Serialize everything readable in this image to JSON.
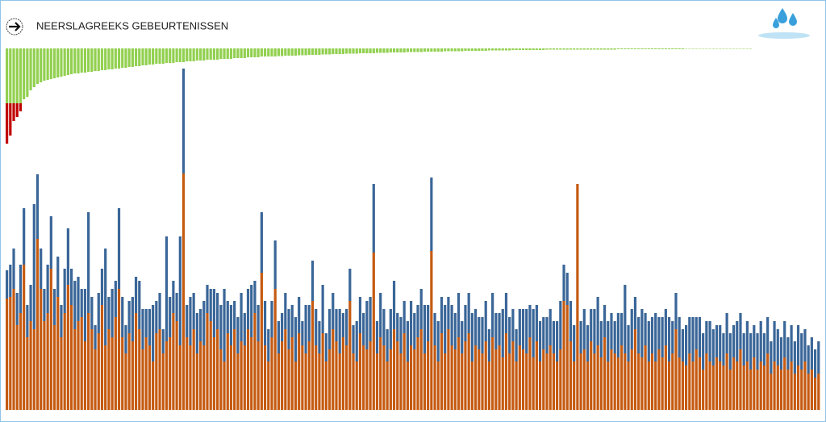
{
  "chart_data": [
    {
      "type": "bar",
      "title": "NEERSLAGREEKS GEBEURTENISSEN",
      "direction": "down",
      "ylim": [
        0,
        118
      ],
      "series": [
        {
          "color": "#92d050",
          "values": [
            68,
            68,
            68,
            68,
            68,
            63,
            60,
            52,
            48,
            44,
            42,
            40,
            39,
            38,
            37,
            36,
            35,
            34,
            33,
            32,
            31,
            31,
            30,
            30,
            29,
            29,
            28,
            28,
            27,
            27,
            26,
            26,
            25,
            25,
            24,
            24,
            23,
            23,
            22,
            22,
            21,
            21,
            20,
            20,
            19,
            19,
            19,
            18,
            18,
            18,
            17,
            17,
            17,
            16,
            16,
            16,
            15,
            15,
            15,
            14,
            14,
            14,
            14,
            13,
            13,
            13,
            13,
            12,
            12,
            12,
            12,
            11,
            11,
            11,
            11,
            10,
            10,
            10,
            10,
            10,
            9.5,
            9.5,
            9,
            9,
            9,
            9,
            8.5,
            8.5,
            8.5,
            8,
            8,
            8,
            8,
            7.5,
            7.5,
            7.5,
            7,
            7,
            7,
            7,
            6.5,
            6.5,
            6.5,
            6.5,
            6,
            6,
            6,
            6,
            6,
            5.5,
            5.5,
            5.5,
            5.5,
            5,
            5,
            5,
            5,
            5,
            4.5,
            4.5,
            4.5,
            4.5,
            4.5,
            4,
            4,
            4,
            4,
            4,
            4,
            3.5,
            3.5,
            3.5,
            3.5,
            3.5,
            3.5,
            3,
            3,
            3,
            3,
            3,
            3,
            3,
            2.5,
            2.5,
            2.5,
            2.5,
            2.5,
            2.5,
            2.5,
            2,
            2,
            2,
            2,
            2,
            2,
            2,
            2,
            2,
            2,
            1.5,
            1.5,
            1.5,
            1.5,
            1.5,
            1.5,
            1.5,
            1.5,
            1.5,
            1.5,
            1.5,
            1.5,
            1.5,
            1.5,
            1.5,
            1.5,
            1.5,
            1.5,
            1.5,
            1.5,
            1.5,
            1,
            1,
            1,
            1,
            1,
            1,
            1,
            1,
            1,
            1,
            1,
            1,
            1,
            1,
            1,
            1,
            1,
            1,
            1,
            1,
            0.5,
            0.5,
            0.5,
            0.5,
            0.5,
            0.5,
            0.5,
            0.5,
            0.5,
            0.5,
            0.5,
            0.5,
            0.5,
            0.5,
            0.5,
            0.5,
            0.5,
            0.5,
            0.5,
            0.5
          ]
        },
        {
          "color": "#c00000",
          "values": [
            50,
            40,
            22,
            17,
            10
          ]
        }
      ]
    },
    {
      "type": "stacked_bar",
      "ylim": [
        0,
        430
      ],
      "series": [
        {
          "color": "#c55a11",
          "values": [
            138,
            140,
            150,
            105,
            120,
            180,
            90,
            110,
            100,
            212,
            150,
            110,
            120,
            175,
            105,
            140,
            90,
            120,
            155,
            130,
            100,
            110,
            115,
            85,
            120,
            100,
            75,
            95,
            130,
            80,
            100,
            90,
            115,
            150,
            90,
            70,
            95,
            85,
            120,
            100,
            75,
            90,
            80,
            60,
            95,
            100,
            70,
            85,
            90,
            120,
            110,
            80,
            293,
            90,
            80,
            100,
            70,
            85,
            80,
            120,
            110,
            90,
            100,
            75,
            60,
            95,
            80,
            100,
            70,
            85,
            80,
            100,
            90,
            120,
            85,
            170,
            80,
            60,
            90,
            150,
            70,
            85,
            100,
            75,
            90,
            60,
            95,
            80,
            70,
            85,
            135,
            80,
            70,
            95,
            60,
            75,
            100,
            85,
            70,
            90,
            80,
            135,
            70,
            60,
            95,
            80,
            75,
            85,
            195,
            70,
            90,
            80,
            60,
            75,
            100,
            85,
            70,
            95,
            60,
            80,
            75,
            90,
            100,
            70,
            85,
            197,
            80,
            60,
            95,
            70,
            100,
            80,
            75,
            90,
            70,
            85,
            95,
            60,
            80,
            75,
            70,
            85,
            60,
            90,
            75,
            80,
            65,
            95,
            70,
            85,
            60,
            80,
            75,
            70,
            90,
            65,
            85,
            60,
            75,
            70,
            80,
            70,
            60,
            75,
            135,
            130,
            85,
            60,
            280,
            70,
            75,
            60,
            85,
            70,
            80,
            65,
            90,
            60,
            75,
            70,
            65,
            80,
            70,
            60,
            75,
            100,
            70,
            65,
            80,
            60,
            70,
            60,
            75,
            65,
            80,
            60,
            70,
            100,
            65,
            60,
            55,
            70,
            60,
            75,
            65,
            50,
            70,
            60,
            55,
            65,
            60,
            55,
            70,
            50,
            65,
            60,
            75,
            55,
            60,
            50,
            65,
            50,
            60,
            55,
            70,
            45,
            60,
            55,
            50,
            65,
            50,
            60,
            45,
            55,
            50,
            60,
            45,
            50,
            40,
            45
          ]
        },
        {
          "color": "#3a6698",
          "values": [
            35,
            40,
            50,
            40,
            60,
            70,
            40,
            45,
            155,
            80,
            50,
            40,
            60,
            65,
            45,
            50,
            40,
            55,
            70,
            45,
            60,
            55,
            35,
            65,
            125,
            40,
            30,
            50,
            45,
            120,
            40,
            60,
            45,
            100,
            50,
            35,
            40,
            55,
            45,
            60,
            50,
            35,
            45,
            70,
            40,
            45,
            30,
            130,
            50,
            40,
            35,
            135,
            130,
            40,
            60,
            45,
            50,
            40,
            55,
            35,
            40,
            60,
            45,
            55,
            90,
            40,
            50,
            35,
            45,
            60,
            40,
            50,
            65,
            40,
            45,
            75,
            55,
            40,
            45,
            60,
            40,
            35,
            45,
            50,
            40,
            55,
            45,
            30,
            60,
            45,
            50,
            45,
            40,
            60,
            35,
            50,
            45,
            40,
            55,
            30,
            45,
            40,
            35,
            50,
            45,
            40,
            60,
            55,
            85,
            40,
            55,
            45,
            40,
            50,
            60,
            35,
            45,
            40,
            50,
            55,
            45,
            40,
            50,
            60,
            45,
            91,
            40,
            50,
            45,
            60,
            40,
            50,
            45,
            55,
            40,
            45,
            50,
            60,
            45,
            40,
            45,
            50,
            40,
            55,
            45,
            40,
            60,
            50,
            45,
            40,
            40,
            45,
            50,
            55,
            40,
            60,
            45,
            50,
            40,
            45,
            45,
            40,
            50,
            60,
            45,
            40,
            50,
            45,
            0,
            40,
            50,
            45,
            40,
            55,
            60,
            45,
            40,
            50,
            45,
            40,
            55,
            40,
            85,
            45,
            50,
            40,
            45,
            60,
            40,
            50,
            45,
            60,
            40,
            50,
            45,
            55,
            40,
            45,
            50,
            40,
            50,
            45,
            55,
            40,
            50,
            45,
            40,
            50,
            45,
            40,
            45,
            40,
            50,
            45,
            40,
            50,
            45,
            40,
            50,
            45,
            40,
            45,
            50,
            40,
            45,
            40,
            50,
            45,
            40,
            45,
            40,
            45,
            40,
            50,
            45,
            40,
            35,
            40,
            35,
            40
          ]
        }
      ]
    }
  ]
}
